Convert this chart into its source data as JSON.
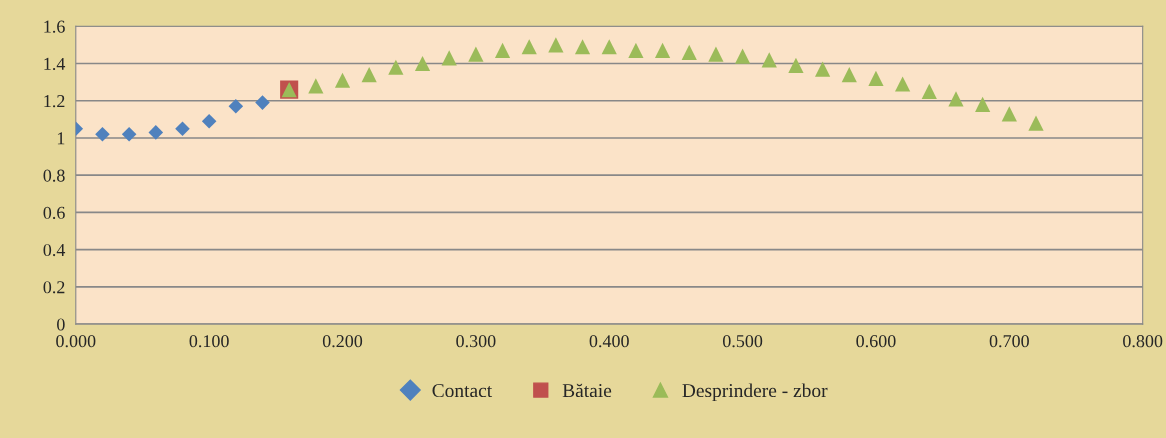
{
  "chart_data": {
    "type": "scatter",
    "series": [
      {
        "name": "Contact",
        "color": "#4f81bd",
        "marker": "diamond",
        "x": [
          0.0,
          0.02,
          0.04,
          0.06,
          0.08,
          0.1,
          0.12,
          0.14
        ],
        "values": [
          1.05,
          1.02,
          1.02,
          1.03,
          1.05,
          1.09,
          1.17,
          1.19
        ]
      },
      {
        "name": "Bătaie",
        "color": "#c0504d",
        "marker": "square",
        "x": [
          0.16
        ],
        "values": [
          1.26
        ]
      },
      {
        "name": "Desprindere - zbor",
        "color": "#9bbb59",
        "marker": "triangle",
        "x": [
          0.16,
          0.18,
          0.2,
          0.22,
          0.24,
          0.26,
          0.28,
          0.3,
          0.32,
          0.34,
          0.36,
          0.38,
          0.4,
          0.42,
          0.44,
          0.46,
          0.48,
          0.5,
          0.52,
          0.54,
          0.56,
          0.58,
          0.6,
          0.62,
          0.64,
          0.66,
          0.68,
          0.7,
          0.72
        ],
        "values": [
          1.26,
          1.28,
          1.31,
          1.34,
          1.38,
          1.4,
          1.43,
          1.45,
          1.47,
          1.49,
          1.5,
          1.49,
          1.49,
          1.47,
          1.47,
          1.46,
          1.45,
          1.44,
          1.42,
          1.39,
          1.37,
          1.34,
          1.32,
          1.29,
          1.25,
          1.21,
          1.18,
          1.13,
          1.08
        ]
      }
    ],
    "xlim": [
      0,
      0.8
    ],
    "xticks": [
      {
        "value": 0,
        "label": "0.000"
      },
      {
        "value": 0.1,
        "label": "0.100"
      },
      {
        "value": 0.2,
        "label": "0.200"
      },
      {
        "value": 0.3,
        "label": "0.300"
      },
      {
        "value": 0.4,
        "label": "0.400"
      },
      {
        "value": 0.5,
        "label": "0.500"
      },
      {
        "value": 0.6,
        "label": "0.600"
      },
      {
        "value": 0.7,
        "label": "0.700"
      },
      {
        "value": 0.8,
        "label": "0.800"
      }
    ],
    "ylim": [
      0,
      1.6
    ],
    "yticks": [
      0,
      0.2,
      0.4,
      0.6,
      0.8,
      1,
      1.2,
      1.4,
      1.6
    ],
    "grid": "y",
    "legend": "bottom"
  }
}
